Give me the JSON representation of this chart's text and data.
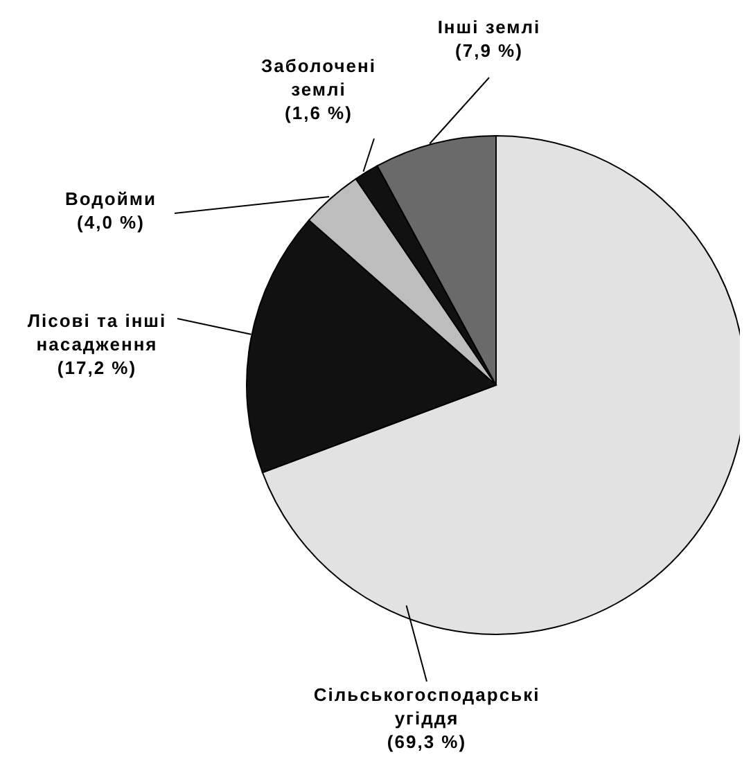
{
  "chart_data": {
    "type": "pie",
    "categories": [
      "Сільськогосподарські угіддя",
      "Лісові та інші насадження",
      "Водойми",
      "Заболочені землі",
      "Інші землі"
    ],
    "values": [
      69.3,
      17.2,
      4.0,
      1.6,
      7.9
    ],
    "colors": [
      "#e2e2e2",
      "#111111",
      "#bdbdbd",
      "#111111",
      "#6a6a6a"
    ],
    "value_labels": [
      "(69,3 %)",
      "(17,2 %)",
      "(4,0 %)",
      "(1,6 %)",
      "(7,9 %)"
    ],
    "legend": false
  }
}
